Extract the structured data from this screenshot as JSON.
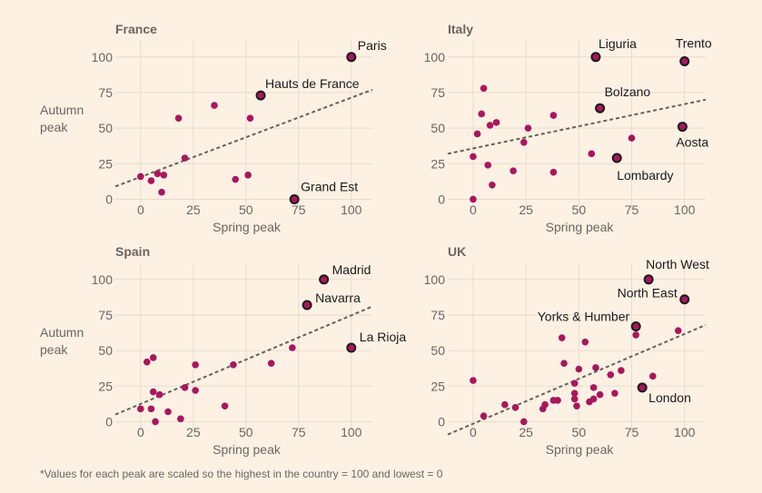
{
  "footnote": "*Values for each peak are scaled so the highest in the country = 100 and lowest = 0",
  "colors": {
    "background": "#fdf1e4",
    "grid": "#e8dcd0",
    "point": "#a8175e",
    "highlight_fill": "#a8175e",
    "highlight_stroke": "#1a1a1a",
    "trend": "#666159",
    "text": "#6b6561",
    "label": "#1a1a1a"
  },
  "chart_data": [
    {
      "type": "scatter",
      "title": "France",
      "xlabel": "Spring peak",
      "ylabel": "Autumn peak",
      "xlim": [
        -12,
        110
      ],
      "ylim": [
        -8,
        112
      ],
      "xticks": [
        0,
        25,
        50,
        75,
        100
      ],
      "yticks": [
        0,
        25,
        50,
        75,
        100
      ],
      "grid": true,
      "trend_line": [
        [
          -12,
          9
        ],
        [
          110,
          77
        ]
      ],
      "points": [
        [
          0,
          16
        ],
        [
          5,
          13
        ],
        [
          8,
          18
        ],
        [
          10,
          5
        ],
        [
          11,
          17
        ],
        [
          18,
          57
        ],
        [
          21,
          29
        ],
        [
          35,
          66
        ],
        [
          45,
          14
        ],
        [
          51,
          17
        ],
        [
          52,
          57
        ]
      ],
      "highlighted": [
        {
          "label": "Paris",
          "x": 100,
          "y": 100
        },
        {
          "label": "Hauts de France",
          "x": 57,
          "y": 73
        },
        {
          "label": "Grand Est",
          "x": 73,
          "y": 0
        }
      ]
    },
    {
      "type": "scatter",
      "title": "Italy",
      "xlabel": "Spring peak",
      "ylabel": "",
      "xlim": [
        -12,
        110
      ],
      "ylim": [
        -8,
        112
      ],
      "xticks": [
        0,
        25,
        50,
        75,
        100
      ],
      "yticks": [
        0,
        25,
        50,
        75,
        100
      ],
      "grid": true,
      "trend_line": [
        [
          -12,
          32
        ],
        [
          110,
          70
        ]
      ],
      "points": [
        [
          0,
          0
        ],
        [
          0,
          30
        ],
        [
          2,
          46
        ],
        [
          4,
          60
        ],
        [
          5,
          78
        ],
        [
          7,
          24
        ],
        [
          8,
          52
        ],
        [
          9,
          10
        ],
        [
          11,
          54
        ],
        [
          19,
          20
        ],
        [
          24,
          40
        ],
        [
          26,
          50
        ],
        [
          38,
          59
        ],
        [
          38,
          19
        ],
        [
          56,
          32
        ],
        [
          75,
          43
        ]
      ],
      "highlighted": [
        {
          "label": "Liguria",
          "x": 58,
          "y": 100
        },
        {
          "label": "Trento",
          "x": 100,
          "y": 97
        },
        {
          "label": "Bolzano",
          "x": 60,
          "y": 64
        },
        {
          "label": "Aosta",
          "x": 99,
          "y": 51
        },
        {
          "label": "Lombardy",
          "x": 68,
          "y": 29
        }
      ]
    },
    {
      "type": "scatter",
      "title": "Spain",
      "xlabel": "Spring peak",
      "ylabel": "Autumn peak",
      "xlim": [
        -12,
        110
      ],
      "ylim": [
        -8,
        112
      ],
      "xticks": [
        0,
        25,
        50,
        75,
        100
      ],
      "yticks": [
        0,
        25,
        50,
        75,
        100
      ],
      "grid": true,
      "trend_line": [
        [
          -12,
          5
        ],
        [
          110,
          81
        ]
      ],
      "points": [
        [
          0,
          9
        ],
        [
          3,
          42
        ],
        [
          5,
          9
        ],
        [
          6,
          45
        ],
        [
          6,
          21
        ],
        [
          7,
          0
        ],
        [
          9,
          19
        ],
        [
          13,
          7
        ],
        [
          19,
          2
        ],
        [
          21,
          24
        ],
        [
          26,
          40
        ],
        [
          26,
          22
        ],
        [
          40,
          11
        ],
        [
          44,
          40
        ],
        [
          62,
          41
        ],
        [
          72,
          52
        ]
      ],
      "highlighted": [
        {
          "label": "Madrid",
          "x": 87,
          "y": 100
        },
        {
          "label": "Navarra",
          "x": 79,
          "y": 82
        },
        {
          "label": "La Rioja",
          "x": 100,
          "y": 52
        }
      ]
    },
    {
      "type": "scatter",
      "title": "UK",
      "xlabel": "Spring peak",
      "ylabel": "",
      "xlim": [
        -12,
        110
      ],
      "ylim": [
        -8,
        112
      ],
      "xticks": [
        0,
        25,
        50,
        75,
        100
      ],
      "yticks": [
        0,
        25,
        50,
        75,
        100
      ],
      "grid": true,
      "trend_line": [
        [
          -12,
          -9
        ],
        [
          110,
          68
        ]
      ],
      "points": [
        [
          0,
          29
        ],
        [
          5,
          4
        ],
        [
          15,
          12
        ],
        [
          20,
          10
        ],
        [
          24,
          0
        ],
        [
          33,
          9
        ],
        [
          34,
          12
        ],
        [
          38,
          15
        ],
        [
          40,
          15
        ],
        [
          42,
          59
        ],
        [
          43,
          41
        ],
        [
          48,
          27
        ],
        [
          48,
          20
        ],
        [
          48,
          16
        ],
        [
          49,
          11
        ],
        [
          50,
          37
        ],
        [
          53,
          56
        ],
        [
          55,
          14
        ],
        [
          57,
          24
        ],
        [
          57,
          16
        ],
        [
          58,
          38
        ],
        [
          60,
          19
        ],
        [
          65,
          33
        ],
        [
          67,
          20
        ],
        [
          70,
          36
        ],
        [
          77,
          61
        ],
        [
          85,
          32
        ],
        [
          97,
          64
        ]
      ],
      "highlighted": [
        {
          "label": "North West",
          "x": 83,
          "y": 100
        },
        {
          "label": "North East",
          "x": 100,
          "y": 86
        },
        {
          "label": "Yorks & Humber",
          "x": 77,
          "y": 67
        },
        {
          "label": "London",
          "x": 80,
          "y": 24
        }
      ]
    }
  ]
}
